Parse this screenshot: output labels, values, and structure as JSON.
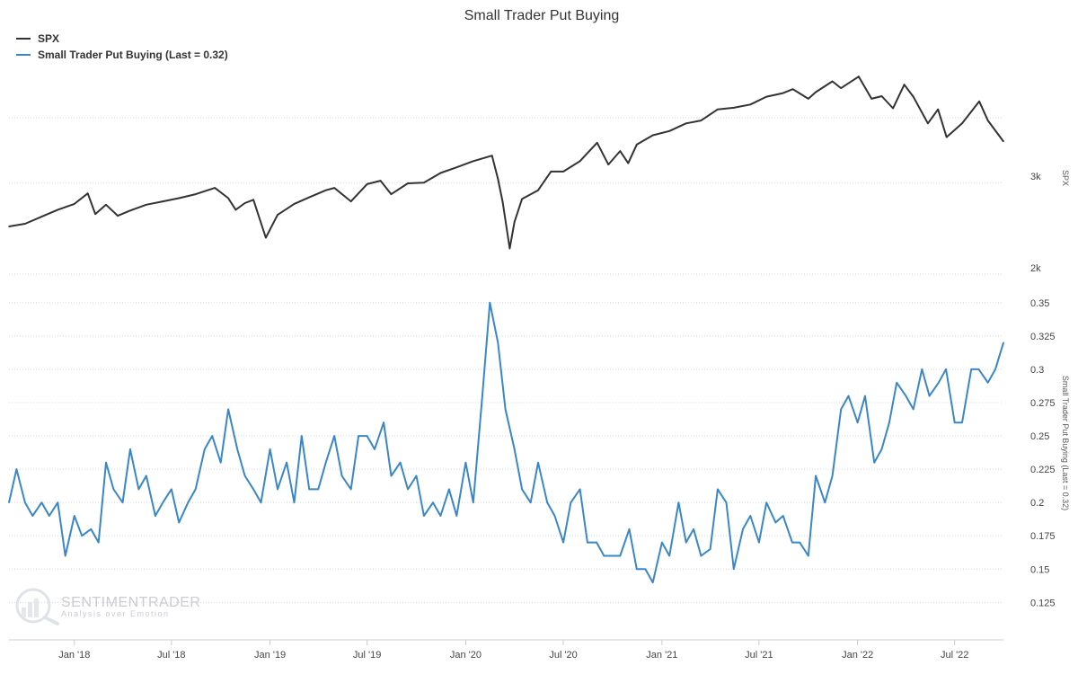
{
  "chart_data": {
    "type": "line",
    "title": "Small Trader Put Buying",
    "legend_placement": "top-left",
    "grid": true,
    "x_ticks": [
      "Jan '18",
      "Jul '18",
      "Jan '19",
      "Jul '19",
      "Jan '20",
      "Jul '20",
      "Jan '21",
      "Jul '21",
      "Jan '22",
      "Jul '22"
    ],
    "x_range": [
      "2017-09-01",
      "2022-09-30"
    ],
    "panels": {
      "spx": {
        "axis_title": "SPX",
        "scale": "log",
        "ylim": [
          2000,
          4900
        ],
        "tick_labels": [
          "3k",
          "2k"
        ],
        "tick_values": [
          3000,
          2000
        ]
      },
      "puts": {
        "axis_title": "Small Trader Put Buying (Last = 0.32)",
        "ylim": [
          0.105,
          0.36
        ],
        "tick_labels": [
          "0.35",
          "0.325",
          "0.3",
          "0.275",
          "0.25",
          "0.225",
          "0.2",
          "0.175",
          "0.15",
          "0.125"
        ],
        "tick_values": [
          0.35,
          0.325,
          0.3,
          0.275,
          0.25,
          0.225,
          0.2,
          0.175,
          0.15,
          0.125
        ]
      }
    },
    "series": [
      {
        "name": "SPX",
        "color": "#333333",
        "x": [
          "2017-09-01",
          "2017-10-01",
          "2017-11-01",
          "2017-12-01",
          "2018-01-01",
          "2018-01-26",
          "2018-02-09",
          "2018-03-01",
          "2018-03-23",
          "2018-04-15",
          "2018-05-15",
          "2018-06-15",
          "2018-07-15",
          "2018-08-15",
          "2018-09-20",
          "2018-10-15",
          "2018-10-29",
          "2018-11-15",
          "2018-12-01",
          "2018-12-24",
          "2019-01-15",
          "2019-02-15",
          "2019-03-15",
          "2019-04-15",
          "2019-05-01",
          "2019-06-01",
          "2019-07-01",
          "2019-07-26",
          "2019-08-15",
          "2019-09-15",
          "2019-10-15",
          "2019-11-15",
          "2019-12-15",
          "2020-01-15",
          "2020-02-19",
          "2020-03-01",
          "2020-03-10",
          "2020-03-23",
          "2020-04-01",
          "2020-04-15",
          "2020-05-15",
          "2020-06-08",
          "2020-07-01",
          "2020-08-01",
          "2020-09-02",
          "2020-09-23",
          "2020-10-15",
          "2020-10-30",
          "2020-11-15",
          "2020-12-15",
          "2021-01-15",
          "2021-02-15",
          "2021-03-15",
          "2021-04-15",
          "2021-05-15",
          "2021-06-15",
          "2021-07-15",
          "2021-08-15",
          "2021-09-02",
          "2021-10-01",
          "2021-10-15",
          "2021-11-15",
          "2021-12-01",
          "2022-01-03",
          "2022-01-27",
          "2022-02-15",
          "2022-03-08",
          "2022-03-29",
          "2022-04-15",
          "2022-05-12",
          "2022-05-31",
          "2022-06-16",
          "2022-07-15",
          "2022-08-16",
          "2022-09-01",
          "2022-09-30"
        ],
        "values": [
          2470,
          2500,
          2580,
          2660,
          2730,
          2860,
          2610,
          2720,
          2590,
          2650,
          2720,
          2760,
          2800,
          2850,
          2930,
          2800,
          2660,
          2740,
          2780,
          2350,
          2600,
          2730,
          2810,
          2900,
          2930,
          2760,
          2980,
          3025,
          2850,
          2990,
          3000,
          3130,
          3210,
          3300,
          3380,
          3050,
          2750,
          2240,
          2520,
          2790,
          2900,
          3150,
          3150,
          3300,
          3580,
          3250,
          3450,
          3270,
          3550,
          3700,
          3770,
          3900,
          3950,
          4150,
          4180,
          4240,
          4390,
          4460,
          4540,
          4350,
          4480,
          4700,
          4560,
          4800,
          4350,
          4400,
          4170,
          4630,
          4390,
          3900,
          4150,
          3670,
          3900,
          4300,
          3950,
          3600
        ]
      },
      {
        "name": "Small Trader Put Buying (Last = 0.32)",
        "color": "#3a87c8",
        "x": [
          "2017-09-01",
          "2017-09-15",
          "2017-10-01",
          "2017-10-15",
          "2017-11-01",
          "2017-11-15",
          "2017-12-01",
          "2017-12-15",
          "2018-01-01",
          "2018-01-15",
          "2018-02-01",
          "2018-02-15",
          "2018-03-01",
          "2018-03-15",
          "2018-04-01",
          "2018-04-15",
          "2018-05-01",
          "2018-05-15",
          "2018-06-01",
          "2018-06-15",
          "2018-07-01",
          "2018-07-15",
          "2018-08-01",
          "2018-08-15",
          "2018-09-01",
          "2018-09-15",
          "2018-10-01",
          "2018-10-15",
          "2018-11-01",
          "2018-11-15",
          "2018-12-01",
          "2018-12-15",
          "2019-01-01",
          "2019-01-15",
          "2019-02-01",
          "2019-02-15",
          "2019-03-01",
          "2019-03-15",
          "2019-04-01",
          "2019-04-15",
          "2019-05-01",
          "2019-05-15",
          "2019-06-01",
          "2019-06-15",
          "2019-07-01",
          "2019-07-15",
          "2019-08-01",
          "2019-08-15",
          "2019-09-01",
          "2019-09-15",
          "2019-10-01",
          "2019-10-15",
          "2019-11-01",
          "2019-11-15",
          "2019-12-01",
          "2019-12-15",
          "2020-01-01",
          "2020-01-15",
          "2020-02-01",
          "2020-02-15",
          "2020-03-01",
          "2020-03-15",
          "2020-04-01",
          "2020-04-15",
          "2020-05-01",
          "2020-05-15",
          "2020-06-01",
          "2020-06-15",
          "2020-07-01",
          "2020-07-15",
          "2020-08-01",
          "2020-08-15",
          "2020-09-01",
          "2020-09-15",
          "2020-10-01",
          "2020-10-15",
          "2020-11-01",
          "2020-11-15",
          "2020-12-01",
          "2020-12-15",
          "2021-01-01",
          "2021-01-15",
          "2021-02-01",
          "2021-02-15",
          "2021-03-01",
          "2021-03-15",
          "2021-04-01",
          "2021-04-15",
          "2021-05-01",
          "2021-05-15",
          "2021-06-01",
          "2021-06-15",
          "2021-07-01",
          "2021-07-15",
          "2021-08-01",
          "2021-08-15",
          "2021-09-01",
          "2021-09-15",
          "2021-10-01",
          "2021-10-15",
          "2021-11-01",
          "2021-11-15",
          "2021-12-01",
          "2021-12-15",
          "2022-01-01",
          "2022-01-15",
          "2022-02-01",
          "2022-02-15",
          "2022-03-01",
          "2022-03-15",
          "2022-04-01",
          "2022-04-15",
          "2022-05-01",
          "2022-05-15",
          "2022-06-01",
          "2022-06-15",
          "2022-07-01",
          "2022-07-15",
          "2022-08-01",
          "2022-08-15",
          "2022-09-01",
          "2022-09-15",
          "2022-09-30"
        ],
        "values": [
          0.2,
          0.225,
          0.2,
          0.19,
          0.2,
          0.19,
          0.2,
          0.16,
          0.19,
          0.175,
          0.18,
          0.17,
          0.23,
          0.21,
          0.2,
          0.24,
          0.21,
          0.22,
          0.19,
          0.2,
          0.21,
          0.185,
          0.2,
          0.21,
          0.24,
          0.25,
          0.23,
          0.27,
          0.24,
          0.22,
          0.21,
          0.2,
          0.24,
          0.21,
          0.23,
          0.2,
          0.25,
          0.21,
          0.21,
          0.23,
          0.25,
          0.22,
          0.21,
          0.25,
          0.25,
          0.24,
          0.26,
          0.22,
          0.23,
          0.21,
          0.22,
          0.19,
          0.2,
          0.19,
          0.21,
          0.19,
          0.23,
          0.2,
          0.28,
          0.35,
          0.32,
          0.27,
          0.24,
          0.21,
          0.2,
          0.23,
          0.2,
          0.19,
          0.17,
          0.2,
          0.21,
          0.17,
          0.17,
          0.16,
          0.16,
          0.16,
          0.18,
          0.15,
          0.15,
          0.14,
          0.17,
          0.16,
          0.2,
          0.17,
          0.18,
          0.16,
          0.165,
          0.21,
          0.2,
          0.15,
          0.18,
          0.19,
          0.17,
          0.2,
          0.185,
          0.19,
          0.17,
          0.17,
          0.16,
          0.22,
          0.2,
          0.22,
          0.27,
          0.28,
          0.26,
          0.28,
          0.23,
          0.24,
          0.26,
          0.29,
          0.28,
          0.27,
          0.3,
          0.28,
          0.29,
          0.3,
          0.26,
          0.26,
          0.3,
          0.3,
          0.29,
          0.3,
          0.32
        ]
      }
    ]
  },
  "watermark": {
    "brand": "SENTIMENTRADER",
    "tagline": "Analysis over Emotion"
  }
}
